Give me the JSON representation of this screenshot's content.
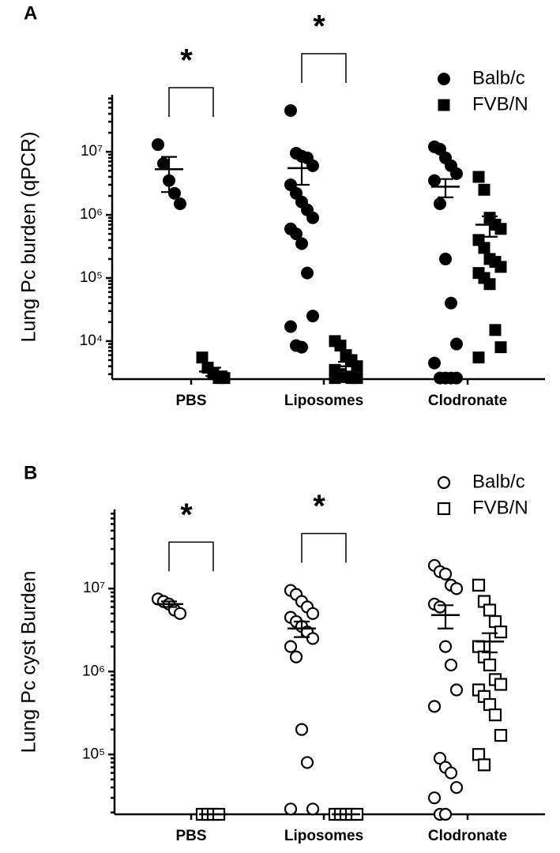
{
  "chart_data": [
    {
      "type": "dotplot",
      "panel": "A",
      "ylabel": "Lung Pc burden (qPCR)",
      "log_scale": true,
      "legend": "upper right",
      "categories": [
        "PBS",
        "Liposomes",
        "Clodronate"
      ],
      "significance_labels": [
        "*",
        "*",
        null
      ],
      "ylim": [
        2500,
        80000000
      ],
      "yticks": [
        {
          "value": 10000,
          "label": "10⁴"
        },
        {
          "value": 100000,
          "label": "10⁵"
        },
        {
          "value": 1000000,
          "label": "10⁶"
        },
        {
          "value": 10000000,
          "label": "10⁷"
        }
      ],
      "series": [
        {
          "name": "Balb/c",
          "color": "#000000",
          "marker": "circle",
          "filled": true,
          "values": [
            [
              13000000,
              6500000,
              3500000,
              2200000,
              1500000
            ],
            [
              45000000,
              9500000,
              8500000,
              8000000,
              6000000,
              3000000,
              2200000,
              1600000,
              1200000,
              900000,
              600000,
              500000,
              350000,
              120000,
              25000,
              17000,
              8500,
              8000
            ],
            [
              12000000,
              11000000,
              8000000,
              6000000,
              4500000,
              3500000,
              1500000,
              200000,
              40000,
              9000,
              4500,
              2600,
              2600,
              2600,
              2600
            ]
          ],
          "means": [
            5300000,
            5500000,
            2800000
          ],
          "sems": [
            3000000,
            2500000,
            900000
          ]
        },
        {
          "name": "FVB/N",
          "color": "#000000",
          "marker": "square",
          "filled": true,
          "values": [
            [
              5500,
              3800,
              3000,
              2600,
              2600
            ],
            [
              10000,
              8500,
              6000,
              5000,
              4000,
              3500,
              3000,
              2700,
              2600,
              2600,
              2600
            ],
            [
              4000000,
              2500000,
              900000,
              700000,
              600000,
              400000,
              300000,
              200000,
              180000,
              150000,
              120000,
              100000,
              80000,
              15000,
              8000,
              5500
            ]
          ],
          "means": [
            3300,
            4000,
            700000
          ],
          "sems": [
            500,
            700,
            250000
          ]
        }
      ]
    },
    {
      "type": "dotplot",
      "panel": "B",
      "ylabel": "Lung Pc cyst Burden",
      "log_scale": true,
      "legend": "upper right",
      "categories": [
        "PBS",
        "Liposomes",
        "Clodronate"
      ],
      "significance_labels": [
        "*",
        "*",
        null
      ],
      "ylim": [
        19000,
        90000000
      ],
      "yticks": [
        {
          "value": 100000,
          "label": "10⁵"
        },
        {
          "value": 1000000,
          "label": "10⁶"
        },
        {
          "value": 10000000,
          "label": "10⁷"
        }
      ],
      "series": [
        {
          "name": "Balb/c",
          "color": "#000000",
          "marker": "circle",
          "filled": false,
          "values": [
            [
              7500000,
              7000000,
              6500000,
              5500000,
              5000000
            ],
            [
              9500000,
              8500000,
              7000000,
              6000000,
              5000000,
              4500000,
              4000000,
              3500000,
              3000000,
              2500000,
              2000000,
              1500000,
              200000,
              80000,
              22000,
              22000
            ],
            [
              19000000,
              16000000,
              15000000,
              11000000,
              10000000,
              6500000,
              6000000,
              2000000,
              1200000,
              600000,
              380000,
              90000,
              70000,
              60000,
              40000,
              30000,
              19000,
              19000
            ]
          ],
          "means": [
            6500000,
            3300000,
            4800000
          ],
          "sems": [
            500000,
            700000,
            1500000
          ]
        },
        {
          "name": "FVB/N",
          "color": "#000000",
          "marker": "square",
          "filled": false,
          "values": [
            [
              19000,
              19000,
              19000,
              19000
            ],
            [
              19000,
              19000,
              19000,
              19000,
              19000
            ],
            [
              11000000,
              7000000,
              5500000,
              4000000,
              3000000,
              2000000,
              1500000,
              1200000,
              800000,
              700000,
              600000,
              500000,
              400000,
              300000,
              170000,
              100000,
              75000
            ]
          ],
          "means": [
            19000,
            19000,
            2300000
          ],
          "sems": [
            0,
            0,
            600000
          ]
        }
      ]
    }
  ]
}
